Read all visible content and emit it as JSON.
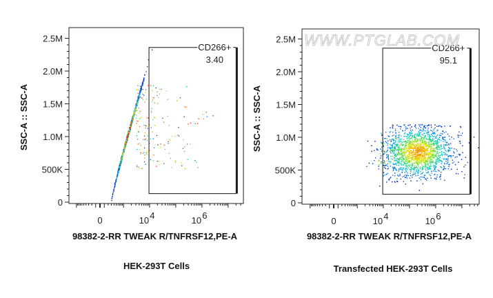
{
  "watermark": "WWW.PTGLAB.COM",
  "chart_data": [
    {
      "type": "scatter",
      "title": "HEK-293T Cells",
      "xlabel": "98382-2-RR TWEAK R/TNFRSF12,PE-A",
      "ylabel": "SSC-A :: SSC-A",
      "x_scale": "biexponential",
      "x_ticks": [
        {
          "value": 0,
          "label": "0"
        },
        {
          "value": 10000,
          "base": "10",
          "exp": "4"
        },
        {
          "value": 1000000,
          "base": "10",
          "exp": "6"
        }
      ],
      "y_ticks": [
        {
          "value": 0,
          "label": "0"
        },
        {
          "value": 500000,
          "label": "500K"
        },
        {
          "value": 1000000,
          "label": "1.0M"
        },
        {
          "value": 1500000,
          "label": "1.5M"
        },
        {
          "value": 2000000,
          "label": "2.0M"
        },
        {
          "value": 2500000,
          "label": "2.5M"
        }
      ],
      "ylim": [
        0,
        2600000
      ],
      "gate": {
        "name": "CD266+",
        "percent": "3.40",
        "x_range": [
          9500,
          20000000
        ],
        "y_range": [
          130000,
          2360000
        ]
      },
      "population": {
        "x_center": 1500,
        "x_log_sd": 0.22,
        "y_center": 1050000,
        "y_sd": 280000,
        "tilt": "SSC rises with PE",
        "events": 2600,
        "color_scale": "density"
      }
    },
    {
      "type": "scatter",
      "title": "Transfected HEK-293T Cells",
      "xlabel": "98382-2-RR TWEAK R/TNFRSF12,PE-A",
      "ylabel": "SSC-A :: SSC-A",
      "x_scale": "biexponential",
      "x_ticks": [
        {
          "value": 0,
          "label": "0"
        },
        {
          "value": 10000,
          "base": "10",
          "exp": "4"
        },
        {
          "value": 1000000,
          "base": "10",
          "exp": "6"
        }
      ],
      "y_ticks": [
        {
          "value": 0,
          "label": "0"
        },
        {
          "value": 500000,
          "label": "500K"
        },
        {
          "value": 1000000,
          "label": "1.0M"
        },
        {
          "value": 1500000,
          "label": "1.5M"
        },
        {
          "value": 2000000,
          "label": "2.0M"
        },
        {
          "value": 2500000,
          "label": "2.5M"
        }
      ],
      "ylim": [
        0,
        2600000
      ],
      "gate": {
        "name": "CD266+",
        "percent": "95.1",
        "x_range": [
          9500,
          20000000
        ],
        "y_range": [
          130000,
          2360000
        ]
      },
      "population": {
        "x_center": 200000,
        "x_log_sd": 0.65,
        "y_center": 780000,
        "y_sd": 190000,
        "tilt": "none",
        "events": 3000,
        "color_scale": "density"
      }
    }
  ]
}
